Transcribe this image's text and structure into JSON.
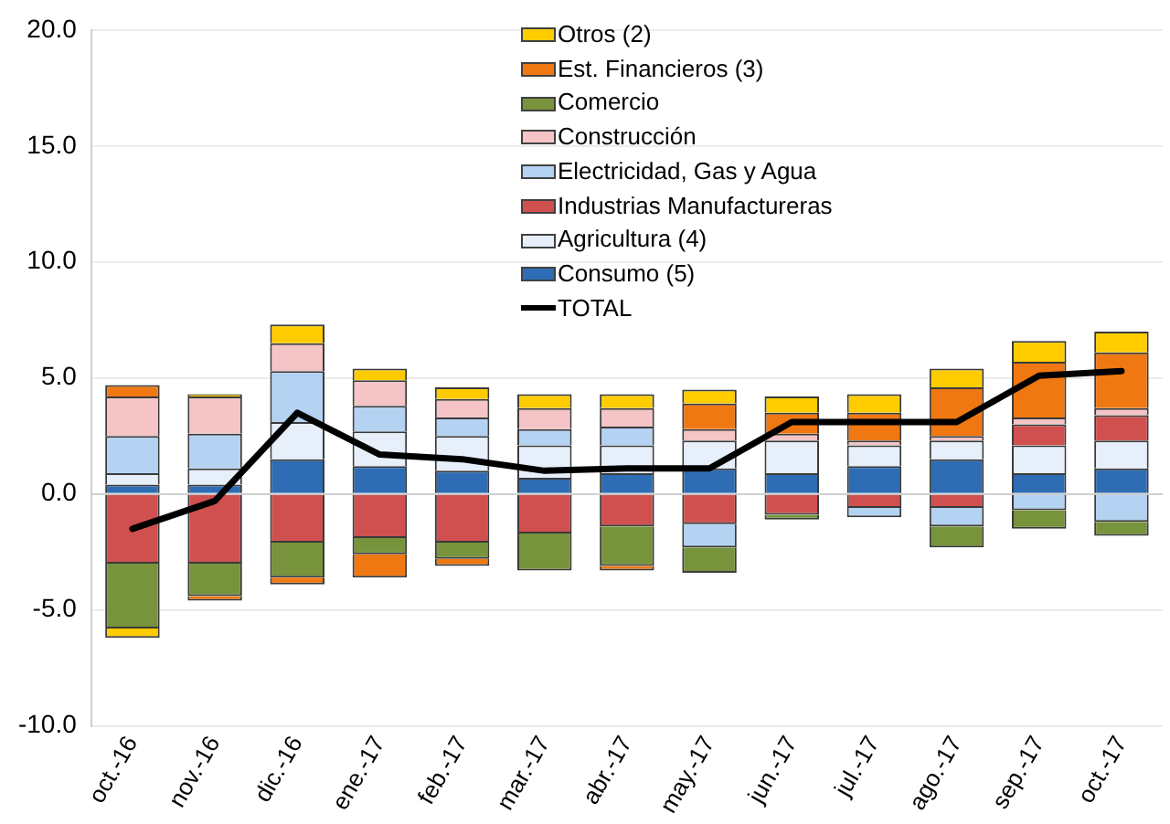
{
  "chart_data": {
    "type": "bar",
    "stacked": true,
    "categories": [
      "oct.-16",
      "nov.-16",
      "dic.-16",
      "ene.-17",
      "feb.-17",
      "mar.-17",
      "abr.-17",
      "may.-17",
      "jun.-17",
      "jul.-17",
      "ago.-17",
      "sep.-17",
      "oct.-17"
    ],
    "series": [
      {
        "name": "Consumo (5)",
        "color": "#2e6db4",
        "values": [
          0.4,
          0.4,
          1.5,
          1.2,
          1.0,
          0.7,
          0.9,
          1.1,
          0.9,
          1.2,
          1.5,
          0.9,
          1.1
        ]
      },
      {
        "name": "Agricultura (4)",
        "color": "#e6effa",
        "values": [
          0.5,
          0.7,
          1.6,
          1.5,
          1.5,
          1.4,
          1.2,
          1.2,
          1.4,
          0.9,
          0.8,
          1.2,
          1.2
        ]
      },
      {
        "name": "Industrias Manufactureras",
        "color": "#d05050",
        "values": [
          -3.0,
          -3.0,
          -2.1,
          -1.9,
          -2.1,
          -1.7,
          -1.4,
          -1.3,
          -0.9,
          -0.6,
          -0.6,
          0.9,
          1.1
        ]
      },
      {
        "name": "Electricidad, Gas y Agua",
        "color": "#b4d2f2",
        "values": [
          1.6,
          1.5,
          2.2,
          1.1,
          0.8,
          0.7,
          0.8,
          -1.0,
          null,
          -0.4,
          -0.8,
          -0.7,
          -1.2
        ]
      },
      {
        "name": "Construcción",
        "color": "#f4c4c6",
        "values": [
          1.7,
          1.6,
          1.2,
          1.1,
          0.8,
          0.9,
          0.8,
          0.5,
          0.3,
          0.2,
          0.2,
          0.3,
          0.3
        ]
      },
      {
        "name": "Comercio",
        "color": "#77933c",
        "values": [
          -2.8,
          -1.4,
          -1.5,
          -0.7,
          -0.7,
          -1.6,
          -1.7,
          -1.1,
          -0.2,
          null,
          -0.9,
          -0.8,
          -0.6
        ]
      },
      {
        "name": "Est. Financieros (3)",
        "color": "#f07812",
        "values": [
          0.5,
          -0.2,
          -0.3,
          -1.0,
          -0.3,
          null,
          -0.2,
          1.1,
          0.9,
          1.2,
          2.1,
          2.4,
          2.4
        ]
      },
      {
        "name": "Otros (2)",
        "color": "#ffcc00",
        "values": [
          -0.4,
          0.1,
          0.8,
          0.5,
          0.5,
          0.6,
          0.6,
          0.6,
          0.7,
          0.8,
          0.8,
          0.9,
          0.9
        ]
      },
      {
        "name": "TOTAL",
        "type": "line",
        "color": "#000000",
        "values": [
          -1.5,
          -0.3,
          3.5,
          1.7,
          1.5,
          1.0,
          1.1,
          1.1,
          3.1,
          3.1,
          3.1,
          5.1,
          5.3
        ]
      }
    ],
    "ylim": [
      -10,
      20
    ],
    "yticks": [
      {
        "value": -10,
        "label": "-10.0"
      },
      {
        "value": -5,
        "label": "-5.0"
      },
      {
        "value": 0,
        "label": "0.0"
      },
      {
        "value": 5,
        "label": "5.0"
      },
      {
        "value": 10,
        "label": "10.0"
      },
      {
        "value": 15,
        "label": "15.0"
      },
      {
        "value": 20,
        "label": "20.0"
      }
    ],
    "grid": "y",
    "legend": "top",
    "marker": "none"
  }
}
